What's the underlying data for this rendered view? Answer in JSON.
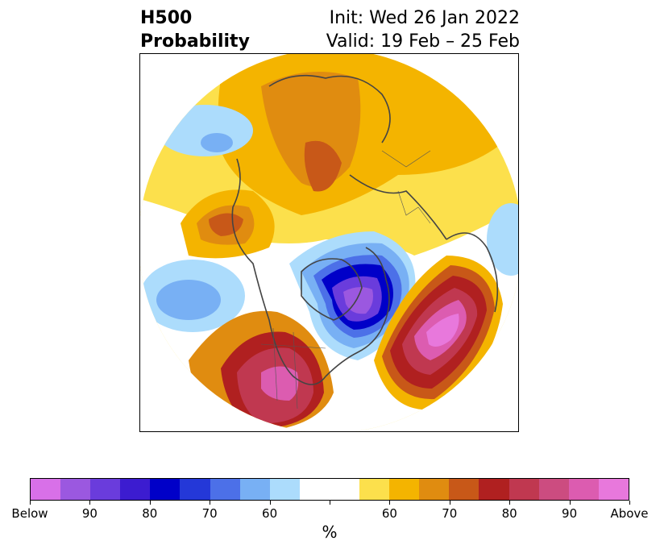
{
  "title": {
    "left_line1": "H500",
    "left_line2": "Probability",
    "right_line1": "Init: Wed 26 Jan 2022",
    "right_line2": "Valid: 19 Feb – 25 Feb"
  },
  "colorbar": {
    "colors": [
      "#d870e8",
      "#9b58e0",
      "#6a3cdc",
      "#3c1cd0",
      "#0000c8",
      "#2438d8",
      "#4c70e8",
      "#78b0f4",
      "#acdcfc",
      "#ffffff",
      "#ffffff",
      "#fce04c",
      "#f4b400",
      "#e08c10",
      "#c85818",
      "#b02020",
      "#c03850",
      "#cc4c80",
      "#dc5cb0",
      "#e878dc"
    ],
    "tick_labels": [
      "Below",
      "90",
      "80",
      "70",
      "60",
      "",
      "60",
      "70",
      "80",
      "90",
      "Above"
    ],
    "unit": "%"
  },
  "legend_classes": {
    "below_80_90": "#3c1cd0",
    "below_70_80": "#2438d8",
    "below_60_70": "#4c70e8",
    "below_50_60": "#acdcfc",
    "above_50_60": "#fce04c",
    "above_60_70": "#f4b400",
    "above_70_80": "#e08c10",
    "above_80_90": "#c85818",
    "above_90": "#b02020"
  }
}
